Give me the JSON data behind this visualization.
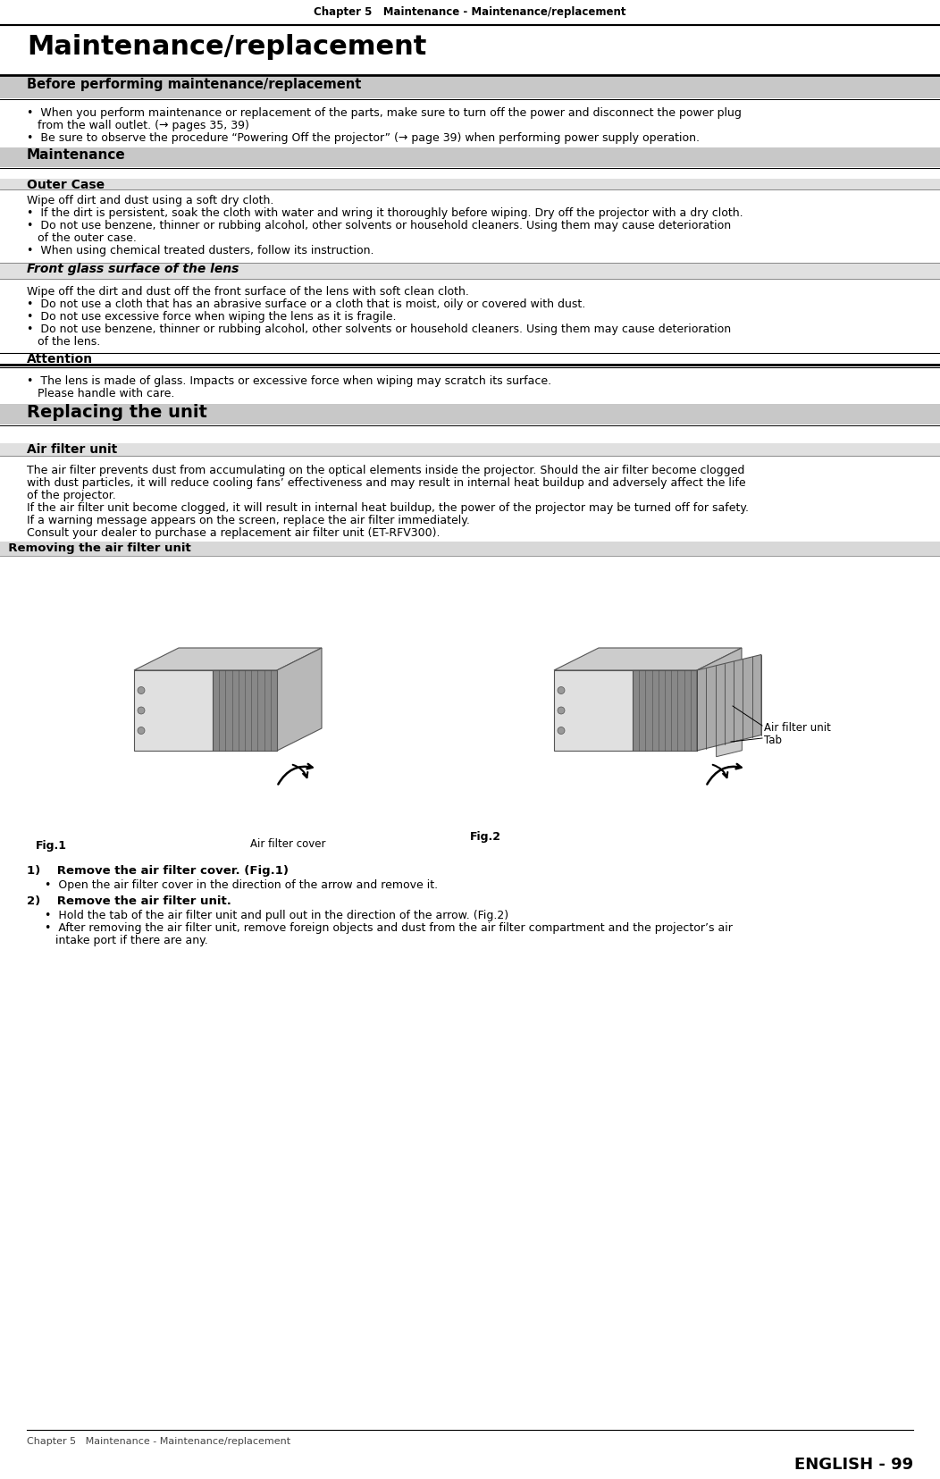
{
  "page_width": 10.52,
  "page_height": 16.55,
  "dpi": 100,
  "bg_color": "#ffffff",
  "header_text": "Chapter 5   Maintenance - Maintenance/replacement",
  "main_title": "Maintenance/replacement",
  "section1_title": "Before performing maintenance/replacement",
  "section1_b1_line1": "•  When you perform maintenance or replacement of the parts, make sure to turn off the power and disconnect the power plug",
  "section1_b1_line2": "   from the wall outlet. (→ pages 35, 39)",
  "section1_b2": "•  Be sure to observe the procedure “Powering Off the projector” (→ page 39) when performing power supply operation.",
  "maintenance_title": "Maintenance",
  "outer_case_title": "Outer Case",
  "outer_case_text": "Wipe off dirt and dust using a soft dry cloth.",
  "outer_case_b1": "•  If the dirt is persistent, soak the cloth with water and wring it thoroughly before wiping. Dry off the projector with a dry cloth.",
  "outer_case_b2_line1": "•  Do not use benzene, thinner or rubbing alcohol, other solvents or household cleaners. Using them may cause deterioration",
  "outer_case_b2_line2": "   of the outer case.",
  "outer_case_b3": "•  When using chemical treated dusters, follow its instruction.",
  "lens_title": "Front glass surface of the lens",
  "lens_text": "Wipe off the dirt and dust off the front surface of the lens with soft clean cloth.",
  "lens_b1": "•  Do not use a cloth that has an abrasive surface or a cloth that is moist, oily or covered with dust.",
  "lens_b2": "•  Do not use excessive force when wiping the lens as it is fragile.",
  "lens_b3_line1": "•  Do not use benzene, thinner or rubbing alcohol, other solvents or household cleaners. Using them may cause deterioration",
  "lens_b3_line2": "   of the lens.",
  "attention_title": "Attention",
  "attention_b1": "•  The lens is made of glass. Impacts or excessive force when wiping may scratch its surface.",
  "attention_b1_line2": "   Please handle with care.",
  "replacing_title": "Replacing the unit",
  "air_filter_title": "Air filter unit",
  "air_filter_p1_line1": "The air filter prevents dust from accumulating on the optical elements inside the projector. Should the air filter become clogged",
  "air_filter_p1_line2": "with dust particles, it will reduce cooling fans’ effectiveness and may result in internal heat buildup and adversely affect the life",
  "air_filter_p1_line3": "of the projector.",
  "air_filter_p2": "If the air filter unit become clogged, it will result in internal heat buildup, the power of the projector may be turned off for safety.",
  "air_filter_p3": "If a warning message appears on the screen, replace the air filter immediately.",
  "air_filter_p4": "Consult your dealer to purchase a replacement air filter unit (ET-RFV300).",
  "removing_title": "  Removing the air filter unit",
  "fig1_label": "Fig.1",
  "fig2_label": "Fig.2",
  "air_filter_cover_label": "Air filter cover",
  "air_filter_unit_label": "Air filter unit",
  "tab_label": "Tab",
  "step1_title": "1)    Remove the air filter cover. (Fig.1)",
  "step1_b1": "•  Open the air filter cover in the direction of the arrow and remove it.",
  "step2_title": "2)    Remove the air filter unit.",
  "step2_b1": "•  Hold the tab of the air filter unit and pull out in the direction of the arrow. (Fig.2)",
  "step2_b2_line1": "•  After removing the air filter unit, remove foreign objects and dust from the air filter compartment and the projector’s air",
  "step2_b2_line2": "   intake port if there are any.",
  "footer_right": "ENGLISH - 99",
  "footer_left": "Chapter 5   Maintenance - Maintenance/replacement",
  "gray_bar": "#c8c8c8",
  "light_gray_bar": "#d8d8d8",
  "lighter_gray_bar": "#e0e0e0",
  "white": "#ffffff",
  "black": "#000000",
  "dark_gray": "#333333"
}
